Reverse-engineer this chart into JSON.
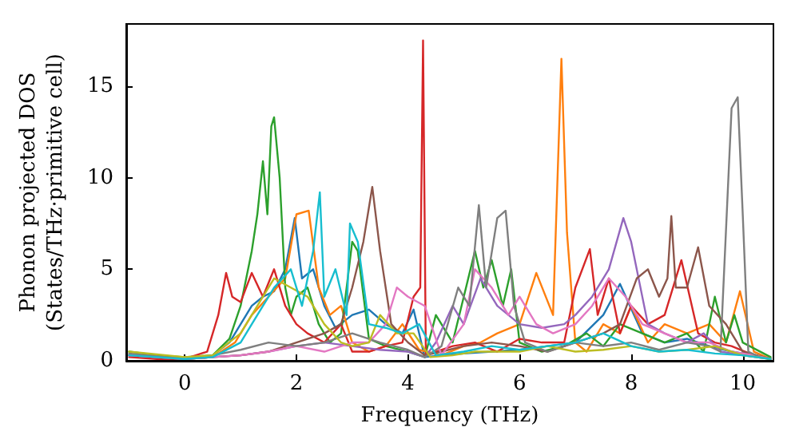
{
  "chart_data": {
    "type": "line",
    "xlabel": "Frequency (THz)",
    "ylabel": "Phonon projected DOS\n(States/THz·primitive cell)",
    "xlim": [
      -1.05,
      10.55
    ],
    "ylim": [
      0,
      18.4
    ],
    "xticks": [
      0,
      2,
      4,
      6,
      8,
      10
    ],
    "yticks": [
      0,
      5,
      10,
      15
    ],
    "grid": false,
    "marker": "none",
    "line_style": "solid",
    "series": [
      {
        "color": "#1f77b4",
        "x": [
          -1,
          -0.5,
          0,
          0.5,
          0.8,
          1.0,
          1.2,
          1.4,
          1.6,
          1.8,
          1.97,
          2.1,
          2.3,
          2.5,
          2.7,
          3.0,
          3.3,
          3.6,
          3.9,
          4.1,
          4.3,
          4.6,
          5.0,
          5.5,
          6.0,
          6.5,
          7.0,
          7.5,
          7.8,
          8.2,
          8.6,
          9.0,
          9.4,
          9.8,
          10.2,
          10.5
        ],
        "values": [
          0.3,
          0.2,
          0.1,
          0.3,
          1.0,
          2.0,
          3.0,
          3.5,
          3.8,
          5.0,
          7.8,
          4.5,
          5.0,
          3.0,
          1.8,
          2.5,
          2.8,
          2.0,
          1.5,
          2.8,
          0.2,
          0.3,
          0.4,
          0.5,
          0.6,
          0.8,
          1.0,
          2.5,
          4.2,
          1.5,
          1.0,
          1.2,
          0.8,
          0.5,
          0.3,
          0.1
        ]
      },
      {
        "color": "#ff7f0e",
        "x": [
          0,
          0.5,
          0.9,
          1.2,
          1.5,
          1.8,
          2.0,
          2.22,
          2.4,
          2.6,
          2.8,
          3.0,
          3.3,
          3.6,
          3.9,
          4.2,
          4.6,
          5.0,
          5.3,
          5.6,
          6.0,
          6.3,
          6.6,
          6.75,
          6.85,
          7.0,
          7.2,
          7.5,
          7.8,
          8.0,
          8.3,
          8.6,
          9.0,
          9.4,
          9.7,
          9.95,
          10.2,
          10.5
        ],
        "values": [
          0.1,
          0.2,
          1.0,
          2.5,
          3.5,
          4.5,
          8.0,
          8.2,
          4.0,
          2.5,
          3.0,
          1.0,
          0.5,
          0.8,
          2.0,
          0.6,
          0.3,
          0.8,
          1.0,
          1.5,
          2.0,
          4.8,
          2.5,
          16.5,
          7.0,
          1.0,
          0.5,
          2.0,
          1.5,
          3.0,
          1.0,
          2.0,
          1.5,
          2.0,
          1.0,
          3.8,
          0.5,
          0.1
        ]
      },
      {
        "color": "#2ca02c",
        "x": [
          -1,
          -0.5,
          0,
          0.5,
          0.8,
          1.0,
          1.2,
          1.3,
          1.4,
          1.48,
          1.55,
          1.6,
          1.7,
          1.8,
          1.9,
          2.0,
          2.2,
          2.4,
          2.6,
          2.8,
          3.0,
          3.1,
          3.3,
          3.6,
          4.0,
          4.3,
          4.5,
          4.8,
          5.0,
          5.2,
          5.35,
          5.5,
          5.7,
          5.85,
          6.0,
          6.4,
          6.8,
          7.2,
          7.5,
          7.8,
          8.2,
          8.6,
          9.0,
          9.3,
          9.5,
          9.7,
          9.85,
          10.0,
          10.5
        ],
        "values": [
          0.5,
          0.3,
          0.2,
          0.3,
          1.2,
          3.0,
          6.0,
          8.0,
          10.9,
          8.0,
          12.8,
          13.3,
          10.0,
          4.0,
          2.5,
          3.5,
          4.0,
          2.0,
          1.0,
          1.5,
          6.5,
          6.0,
          1.2,
          0.8,
          0.5,
          0.2,
          2.5,
          1.0,
          3.5,
          6.0,
          4.0,
          5.5,
          3.0,
          5.0,
          1.0,
          0.5,
          0.8,
          1.5,
          0.8,
          2.0,
          1.5,
          1.0,
          1.5,
          0.5,
          3.5,
          1.0,
          2.5,
          1.0,
          0.2
        ]
      },
      {
        "color": "#d62728",
        "x": [
          -1,
          -0.5,
          0,
          0.4,
          0.6,
          0.74,
          0.85,
          1.0,
          1.2,
          1.4,
          1.6,
          1.8,
          2.0,
          2.2,
          2.5,
          2.8,
          3.0,
          3.3,
          3.6,
          3.9,
          4.1,
          4.22,
          4.27,
          4.32,
          4.5,
          4.8,
          5.2,
          5.6,
          6.0,
          6.4,
          6.8,
          7.0,
          7.26,
          7.4,
          7.6,
          7.8,
          8.0,
          8.3,
          8.6,
          8.9,
          9.2,
          9.5,
          9.8,
          10.2,
          10.5
        ],
        "values": [
          0.2,
          0.1,
          0.1,
          0.5,
          2.5,
          4.8,
          3.5,
          3.2,
          4.8,
          3.5,
          5.0,
          3.0,
          2.0,
          1.5,
          1.0,
          2.0,
          0.5,
          0.5,
          0.8,
          1.0,
          3.5,
          4.0,
          17.5,
          0.3,
          0.5,
          0.8,
          1.0,
          0.5,
          1.2,
          1.0,
          1.0,
          4.0,
          6.1,
          2.5,
          4.5,
          1.5,
          3.0,
          2.0,
          2.5,
          5.5,
          1.5,
          1.0,
          0.8,
          0.3,
          0.1
        ]
      },
      {
        "color": "#9467bd",
        "x": [
          -1,
          0,
          0.5,
          1.0,
          1.5,
          2.0,
          2.5,
          3.0,
          3.5,
          4.0,
          4.3,
          4.5,
          4.8,
          5.0,
          5.3,
          5.6,
          6.0,
          6.4,
          6.8,
          7.0,
          7.3,
          7.6,
          7.86,
          8.0,
          8.3,
          8.6,
          9.0,
          9.3,
          9.6,
          10.0,
          10.5
        ],
        "values": [
          0.3,
          0.1,
          0.2,
          0.3,
          0.5,
          0.8,
          1.0,
          0.8,
          0.6,
          0.5,
          0.2,
          1.0,
          3.0,
          2.0,
          4.5,
          3.0,
          2.0,
          1.8,
          2.0,
          2.5,
          3.5,
          5.0,
          7.8,
          6.5,
          2.0,
          1.5,
          1.0,
          1.5,
          0.5,
          0.3,
          0.1
        ]
      },
      {
        "color": "#8c564b",
        "x": [
          -1,
          0,
          0.5,
          1.0,
          1.5,
          2.0,
          2.5,
          2.8,
          3.0,
          3.2,
          3.36,
          3.5,
          3.7,
          4.0,
          4.3,
          4.6,
          5.0,
          5.5,
          6.0,
          6.5,
          7.0,
          7.5,
          7.8,
          8.1,
          8.3,
          8.5,
          8.65,
          8.72,
          8.8,
          9.0,
          9.2,
          9.4,
          9.7,
          10.0,
          10.5
        ],
        "values": [
          0.3,
          0.1,
          0.2,
          0.3,
          0.5,
          1.0,
          1.5,
          2.0,
          4.0,
          6.5,
          9.5,
          6.0,
          2.0,
          1.0,
          0.3,
          0.5,
          0.8,
          1.0,
          0.8,
          0.5,
          1.0,
          1.5,
          2.0,
          4.5,
          5.0,
          3.5,
          4.5,
          7.9,
          4.0,
          4.0,
          6.2,
          3.0,
          2.0,
          0.5,
          0.1
        ]
      },
      {
        "color": "#e377c2",
        "x": [
          -1,
          0,
          0.5,
          1.0,
          1.5,
          2.0,
          2.5,
          3.0,
          3.3,
          3.6,
          3.8,
          4.0,
          4.3,
          4.6,
          5.0,
          5.2,
          5.5,
          5.8,
          6.0,
          6.3,
          6.6,
          7.0,
          7.3,
          7.6,
          7.9,
          8.2,
          8.6,
          9.0,
          9.4,
          9.8,
          10.2,
          10.5
        ],
        "values": [
          0.3,
          0.1,
          0.2,
          0.3,
          0.5,
          0.8,
          0.5,
          1.0,
          1.0,
          2.0,
          4.0,
          3.5,
          3.0,
          0.3,
          2.0,
          5.0,
          4.0,
          2.5,
          3.5,
          2.0,
          1.5,
          2.0,
          3.0,
          4.5,
          3.5,
          2.0,
          1.5,
          1.0,
          1.0,
          0.5,
          0.3,
          0.1
        ]
      },
      {
        "color": "#7f7f7f",
        "x": [
          -1,
          0,
          0.5,
          1.0,
          1.5,
          2.0,
          2.5,
          3.0,
          3.5,
          4.0,
          4.3,
          4.6,
          4.9,
          5.1,
          5.27,
          5.4,
          5.6,
          5.75,
          5.9,
          6.1,
          6.5,
          7.0,
          7.5,
          8.0,
          8.5,
          9.0,
          9.4,
          9.6,
          9.8,
          9.91,
          10.0,
          10.1,
          10.3,
          10.5
        ],
        "values": [
          0.4,
          0.1,
          0.3,
          0.6,
          1.0,
          0.8,
          1.0,
          1.5,
          1.0,
          0.6,
          0.2,
          0.8,
          4.0,
          3.0,
          8.5,
          4.0,
          7.8,
          8.2,
          3.0,
          1.0,
          0.5,
          1.0,
          0.8,
          1.0,
          0.6,
          1.0,
          0.8,
          0.5,
          13.8,
          14.4,
          8.0,
          0.5,
          0.2,
          0.1
        ]
      },
      {
        "color": "#bcbd22",
        "x": [
          -1,
          0,
          0.5,
          1.0,
          1.3,
          1.6,
          1.9,
          2.2,
          2.5,
          2.8,
          3.0,
          3.3,
          3.5,
          3.8,
          4.1,
          4.4,
          4.8,
          5.2,
          5.6,
          6.0,
          6.5,
          7.0,
          7.5,
          8.0,
          8.5,
          9.0,
          9.5,
          10.0,
          10.5
        ],
        "values": [
          0.5,
          0.2,
          0.3,
          1.5,
          3.0,
          4.5,
          4.0,
          3.5,
          2.0,
          1.0,
          0.8,
          1.0,
          2.5,
          1.5,
          1.5,
          0.2,
          0.3,
          0.5,
          0.5,
          0.5,
          0.8,
          0.5,
          0.6,
          0.8,
          0.5,
          0.6,
          0.8,
          0.3,
          0.1
        ]
      },
      {
        "color": "#17becf",
        "x": [
          -1,
          0,
          0.5,
          1.0,
          1.3,
          1.6,
          1.9,
          2.1,
          2.3,
          2.42,
          2.5,
          2.7,
          2.9,
          2.96,
          3.1,
          3.3,
          3.6,
          3.9,
          4.2,
          4.5,
          5.0,
          5.5,
          6.0,
          6.5,
          7.0,
          7.5,
          8.0,
          8.5,
          9.0,
          9.5,
          10.0,
          10.5
        ],
        "values": [
          0.3,
          0.1,
          0.2,
          1.0,
          2.5,
          4.0,
          5.0,
          3.0,
          6.0,
          9.2,
          3.5,
          5.0,
          2.5,
          7.5,
          6.5,
          2.0,
          1.8,
          1.5,
          2.0,
          0.3,
          0.5,
          0.8,
          0.6,
          0.8,
          1.0,
          1.5,
          0.8,
          0.5,
          0.6,
          0.4,
          0.3,
          0.1
        ]
      }
    ]
  }
}
